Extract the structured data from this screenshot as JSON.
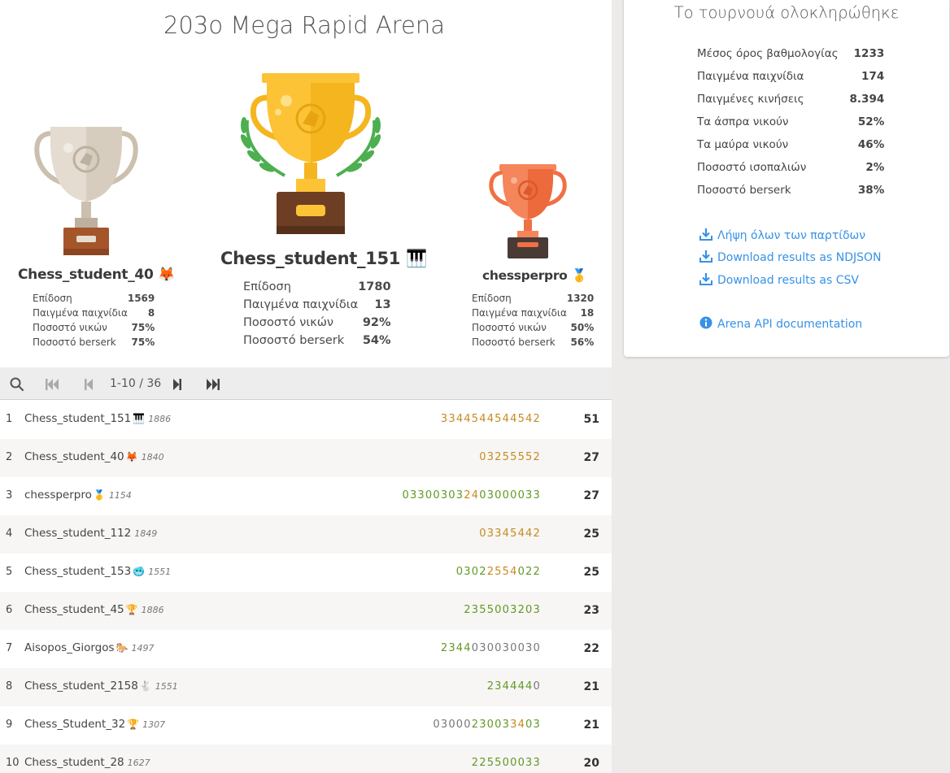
{
  "tournament": {
    "title": "203ο Mega Rapid Arena"
  },
  "podium": {
    "first": {
      "name": "Chess_student_151",
      "flair": "🎹",
      "stats": [
        {
          "label": "Επίδοση",
          "value": "1780"
        },
        {
          "label": "Παιγμένα παιχνίδια",
          "value": "13"
        },
        {
          "label": "Ποσοστό νικών",
          "value": "92%"
        },
        {
          "label": "Ποσοστό berserk",
          "value": "54%"
        }
      ]
    },
    "second": {
      "name": "Chess_student_40",
      "flair": "🦊",
      "stats": [
        {
          "label": "Επίδοση",
          "value": "1569"
        },
        {
          "label": "Παιγμένα παιχνίδια",
          "value": "8"
        },
        {
          "label": "Ποσοστό νικών",
          "value": "75%"
        },
        {
          "label": "Ποσοστό berserk",
          "value": "75%"
        }
      ]
    },
    "third": {
      "name": "chessperpro",
      "flair": "🥇",
      "stats": [
        {
          "label": "Επίδοση",
          "value": "1320"
        },
        {
          "label": "Παιγμένα παιχνίδια",
          "value": "18"
        },
        {
          "label": "Ποσοστό νικών",
          "value": "50%"
        },
        {
          "label": "Ποσοστό berserk",
          "value": "56%"
        }
      ]
    }
  },
  "pager": {
    "range": "1-10 / 36"
  },
  "standings": [
    {
      "rank": "1",
      "name": "Chess_student_151",
      "flair": "🎹",
      "rating": "1886",
      "sheet": [
        [
          "3344544544542",
          "orange"
        ]
      ],
      "total": "51"
    },
    {
      "rank": "2",
      "name": "Chess_student_40",
      "flair": "🦊",
      "rating": "1840",
      "sheet": [
        [
          "03255552",
          "orange"
        ]
      ],
      "total": "27"
    },
    {
      "rank": "3",
      "name": "chessperpro",
      "flair": "🥇",
      "rating": "1154",
      "sheet": [
        [
          "03300303",
          "green"
        ],
        [
          "24",
          "orange"
        ],
        [
          "03000033",
          "green"
        ]
      ],
      "total": "27"
    },
    {
      "rank": "4",
      "name": "Chess_student_112",
      "flair": "",
      "rating": "1849",
      "sheet": [
        [
          "03345442",
          "orange"
        ]
      ],
      "total": "25"
    },
    {
      "rank": "5",
      "name": "Chess_student_153",
      "flair": "🥶",
      "rating": "1551",
      "sheet": [
        [
          "0302",
          "green"
        ],
        [
          "2554",
          "orange"
        ],
        [
          "022",
          "green"
        ]
      ],
      "total": "25"
    },
    {
      "rank": "6",
      "name": "Chess_student_45",
      "flair": "🏆",
      "rating": "1886",
      "sheet": [
        [
          "2355003203",
          "green"
        ]
      ],
      "total": "23"
    },
    {
      "rank": "7",
      "name": "Aisopos_Giorgos",
      "flair": "🐎",
      "rating": "1497",
      "sheet": [
        [
          "2344",
          "green"
        ],
        [
          "030030030",
          "grey"
        ]
      ],
      "total": "22"
    },
    {
      "rank": "8",
      "name": "Chess_student_2158",
      "flair": "🐇",
      "rating": "1551",
      "sheet": [
        [
          "234444",
          "green"
        ],
        [
          "0",
          "grey"
        ]
      ],
      "total": "21"
    },
    {
      "rank": "9",
      "name": "Chess_Student_32",
      "flair": "🏆",
      "rating": "1307",
      "sheet": [
        [
          "03000",
          "grey"
        ],
        [
          "23003",
          "green"
        ],
        [
          "34",
          "orange"
        ],
        [
          "03",
          "green"
        ]
      ],
      "total": "21"
    },
    {
      "rank": "10",
      "name": "Chess_student_28",
      "flair": "",
      "rating": "1627",
      "sheet": [
        [
          "225500033",
          "green"
        ]
      ],
      "total": "20"
    }
  ],
  "summary": {
    "title": "Το τουρνουά ολοκληρώθηκε",
    "stats": [
      {
        "label": "Μέσος όρος βαθμολογίας",
        "value": "1233"
      },
      {
        "label": "Παιγμένα παιχνίδια",
        "value": "174"
      },
      {
        "label": "Παιγμένες κινήσεις",
        "value": "8.394"
      },
      {
        "label": "Τα άσπρα νικούν",
        "value": "52%"
      },
      {
        "label": "Τα μαύρα νικούν",
        "value": "46%"
      },
      {
        "label": "Ποσοστό ισοπαλιών",
        "value": "2%"
      },
      {
        "label": "Ποσοστό berserk",
        "value": "38%"
      }
    ],
    "links": {
      "download_all": "Λήψη όλων των παρτίδων",
      "download_ndjson": "Download results as NDJSON",
      "download_csv": "Download results as CSV",
      "api_docs": "Arena API documentation"
    }
  },
  "colors": {
    "link": "#3692e7",
    "green": "#629924",
    "orange": "#c88a1e",
    "gold": "#fdc336",
    "silver": "#cbbfae",
    "bronze": "#f07044"
  },
  "icons": [
    "search-icon",
    "first-page-icon",
    "prev-page-icon",
    "next-page-icon",
    "last-page-icon",
    "download-icon",
    "info-icon"
  ]
}
